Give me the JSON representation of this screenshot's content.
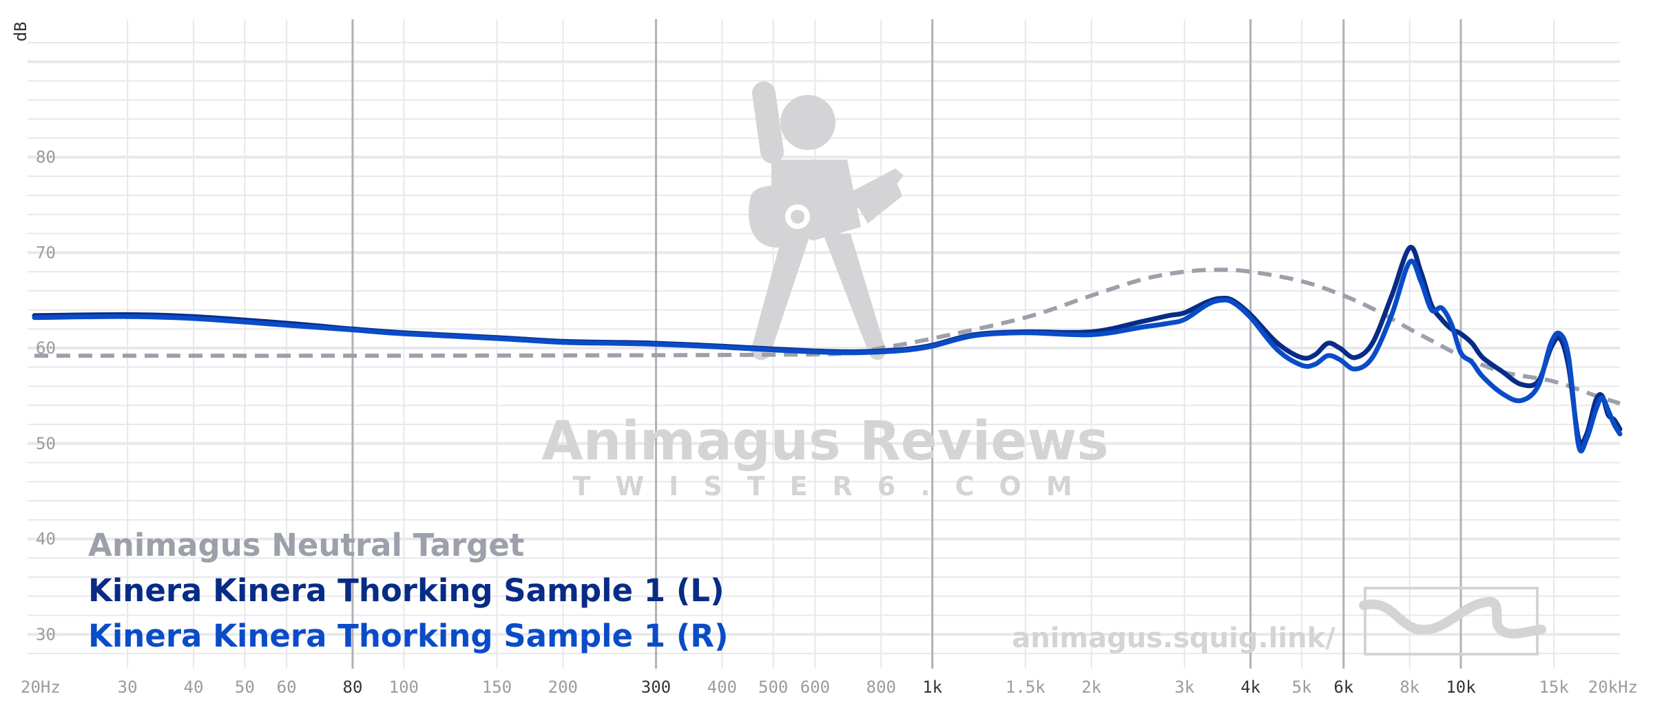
{
  "chart_data": {
    "type": "line",
    "xscale": "log",
    "xlim": [
      20,
      20000
    ],
    "ylim": [
      28,
      92
    ],
    "ylabel": "dB",
    "yticks": [
      30,
      40,
      50,
      60,
      70,
      80
    ],
    "ytick_labels": [
      "30",
      "40",
      "50",
      "60",
      "70",
      "80"
    ],
    "xticks": [
      20,
      30,
      40,
      50,
      60,
      80,
      100,
      150,
      200,
      300,
      400,
      500,
      600,
      800,
      1000,
      1500,
      2000,
      3000,
      4000,
      5000,
      6000,
      8000,
      10000,
      15000,
      20000
    ],
    "xtick_labels": [
      "20Hz",
      "30",
      "40",
      "50",
      "60",
      "80",
      "100",
      "150",
      "200",
      "300",
      "400",
      "500",
      "600",
      "800",
      "1k",
      "1.5k",
      "2k",
      "3k",
      "4k",
      "5k",
      "6k",
      "8k",
      "10k",
      "15k",
      "20kHz"
    ],
    "xtick_emphasis": [
      "80",
      "300",
      "1k",
      "4k",
      "6k",
      "10k"
    ],
    "grid": true,
    "legend_position": "bottom-left",
    "series": [
      {
        "name": "Animagus Neutral Target",
        "color": "#9ca0aa",
        "dash": true,
        "points": [
          [
            20,
            59.2
          ],
          [
            100,
            59.2
          ],
          [
            500,
            59.3
          ],
          [
            700,
            59.5
          ],
          [
            800,
            60.0
          ],
          [
            1000,
            61.0
          ],
          [
            1500,
            63.2
          ],
          [
            2000,
            65.5
          ],
          [
            2500,
            67.2
          ],
          [
            3000,
            68.0
          ],
          [
            3500,
            68.2
          ],
          [
            4000,
            68.0
          ],
          [
            5000,
            67.0
          ],
          [
            6000,
            65.5
          ],
          [
            7000,
            63.8
          ],
          [
            8000,
            62.0
          ],
          [
            9000,
            60.5
          ],
          [
            10000,
            59.2
          ],
          [
            12000,
            57.5
          ],
          [
            15000,
            56.5
          ],
          [
            18000,
            55.0
          ],
          [
            20000,
            54.2
          ]
        ]
      },
      {
        "name": "Kinera Kinera Thorking Sample 1 (L)",
        "color": "#082c86",
        "dash": false,
        "points": [
          [
            20,
            63.4
          ],
          [
            30,
            63.5
          ],
          [
            40,
            63.3
          ],
          [
            60,
            62.6
          ],
          [
            80,
            62.0
          ],
          [
            100,
            61.6
          ],
          [
            150,
            61.1
          ],
          [
            200,
            60.7
          ],
          [
            250,
            60.6
          ],
          [
            300,
            60.5
          ],
          [
            400,
            60.2
          ],
          [
            500,
            59.9
          ],
          [
            600,
            59.7
          ],
          [
            700,
            59.6
          ],
          [
            800,
            59.7
          ],
          [
            900,
            59.9
          ],
          [
            1000,
            60.3
          ],
          [
            1200,
            61.4
          ],
          [
            1500,
            61.7
          ],
          [
            2000,
            61.7
          ],
          [
            2500,
            62.8
          ],
          [
            2800,
            63.4
          ],
          [
            3000,
            63.7
          ],
          [
            3300,
            64.8
          ],
          [
            3500,
            65.2
          ],
          [
            3700,
            65.0
          ],
          [
            4000,
            63.5
          ],
          [
            4500,
            60.5
          ],
          [
            5000,
            59.0
          ],
          [
            5300,
            59.3
          ],
          [
            5600,
            60.5
          ],
          [
            5900,
            60.0
          ],
          [
            6300,
            59.0
          ],
          [
            6800,
            60.5
          ],
          [
            7400,
            65.5
          ],
          [
            8000,
            70.5
          ],
          [
            8400,
            68.0
          ],
          [
            8800,
            64.5
          ],
          [
            9200,
            63.0
          ],
          [
            9600,
            62.0
          ],
          [
            10000,
            61.5
          ],
          [
            10500,
            60.5
          ],
          [
            11000,
            59.0
          ],
          [
            12000,
            57.5
          ],
          [
            13000,
            56.2
          ],
          [
            14000,
            56.5
          ],
          [
            14800,
            60.0
          ],
          [
            15400,
            61.0
          ],
          [
            16000,
            58.0
          ],
          [
            16700,
            50.5
          ],
          [
            17300,
            51.0
          ],
          [
            18000,
            54.5
          ],
          [
            18500,
            55.0
          ],
          [
            19000,
            53.0
          ],
          [
            19500,
            52.5
          ],
          [
            20000,
            51.5
          ]
        ]
      },
      {
        "name": "Kinera Kinera Thorking Sample 1 (R)",
        "color": "#0a4cc8",
        "dash": false,
        "points": [
          [
            20,
            63.2
          ],
          [
            30,
            63.3
          ],
          [
            40,
            63.1
          ],
          [
            60,
            62.4
          ],
          [
            80,
            61.9
          ],
          [
            100,
            61.5
          ],
          [
            150,
            61.0
          ],
          [
            200,
            60.6
          ],
          [
            250,
            60.5
          ],
          [
            300,
            60.4
          ],
          [
            400,
            60.1
          ],
          [
            500,
            59.8
          ],
          [
            600,
            59.6
          ],
          [
            700,
            59.5
          ],
          [
            800,
            59.6
          ],
          [
            900,
            59.8
          ],
          [
            1000,
            60.2
          ],
          [
            1200,
            61.3
          ],
          [
            1500,
            61.6
          ],
          [
            2000,
            61.4
          ],
          [
            2500,
            62.2
          ],
          [
            2800,
            62.6
          ],
          [
            3000,
            63.0
          ],
          [
            3300,
            64.5
          ],
          [
            3500,
            65.0
          ],
          [
            3700,
            64.8
          ],
          [
            4000,
            63.2
          ],
          [
            4500,
            59.8
          ],
          [
            5000,
            58.2
          ],
          [
            5300,
            58.3
          ],
          [
            5600,
            59.2
          ],
          [
            5900,
            58.8
          ],
          [
            6300,
            57.8
          ],
          [
            6800,
            59.0
          ],
          [
            7400,
            63.5
          ],
          [
            8000,
            69.0
          ],
          [
            8400,
            67.0
          ],
          [
            8800,
            64.0
          ],
          [
            9200,
            64.2
          ],
          [
            9600,
            62.5
          ],
          [
            10000,
            59.5
          ],
          [
            10500,
            58.5
          ],
          [
            11000,
            57.0
          ],
          [
            12000,
            55.2
          ],
          [
            13000,
            54.5
          ],
          [
            14000,
            56.0
          ],
          [
            14800,
            60.5
          ],
          [
            15400,
            61.5
          ],
          [
            16000,
            59.0
          ],
          [
            16700,
            49.8
          ],
          [
            17300,
            50.5
          ],
          [
            18000,
            53.5
          ],
          [
            18500,
            54.8
          ],
          [
            19000,
            53.5
          ],
          [
            19500,
            52.0
          ],
          [
            20000,
            51.0
          ]
        ]
      }
    ]
  },
  "legend": [
    {
      "label": "Animagus Neutral Target",
      "color": "#9ca0aa"
    },
    {
      "label": "Kinera Kinera Thorking Sample 1 (L)",
      "color": "#082c86"
    },
    {
      "label": "Kinera Kinera Thorking Sample 1 (R)",
      "color": "#0a4cc8"
    }
  ],
  "watermark": {
    "title": "Animagus Reviews",
    "subtitle": "TWISTER6.COM",
    "url": "animagus.squig.link/",
    "logo_icon": "guitarist-icon",
    "squig_icon": "squiggle-logo-icon"
  },
  "colors": {
    "grid_minor": "#e8e8ec",
    "grid_major": "#b0b0b6",
    "tick_text": "#9a9aa2",
    "tick_text_emphasis": "#333333",
    "watermark": "#d4d4d6"
  }
}
